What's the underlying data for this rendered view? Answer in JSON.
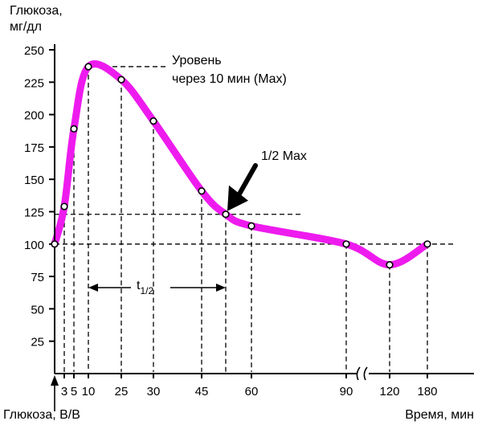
{
  "chart_data": {
    "type": "line",
    "ylabel_line1": "Глюкоза,",
    "ylabel_line2": "мг/дл",
    "xlabel": "Время, мин",
    "start_label": "Глюкоза, В/В",
    "ylim": [
      0,
      262
    ],
    "y_ticks": [
      25,
      50,
      75,
      100,
      125,
      150,
      175,
      200,
      225,
      250
    ],
    "x_ticks": [
      "3",
      "5",
      "10",
      "25",
      "30",
      "45",
      "60",
      "90",
      "120",
      "180"
    ],
    "axis_break": true,
    "grid": false,
    "legend": "none",
    "series": [
      {
        "color": "#ee1bee",
        "points": [
          {
            "x": 0,
            "y": 100
          },
          {
            "x": 3,
            "y": 129
          },
          {
            "x": 5,
            "y": 189
          },
          {
            "x": 10,
            "y": 237
          },
          {
            "x": 25,
            "y": 227
          },
          {
            "x": 30,
            "y": 195
          },
          {
            "x": 45,
            "y": 141
          },
          {
            "x": 52,
            "y": 123
          },
          {
            "x": 60,
            "y": 114
          },
          {
            "x": 90,
            "y": 100
          },
          {
            "x": 120,
            "y": 84
          },
          {
            "x": 180,
            "y": 100
          }
        ]
      }
    ],
    "annotations": {
      "max_line1": "Уровень",
      "max_line2": "через 10 мин (Max)",
      "half_max": "1/2 Max",
      "half_life_base": "t",
      "half_life_sub": "1/2"
    },
    "reference_levels": {
      "max": 237,
      "half_max": 123,
      "baseline": 100
    },
    "half_life_range": [
      10,
      52
    ]
  }
}
